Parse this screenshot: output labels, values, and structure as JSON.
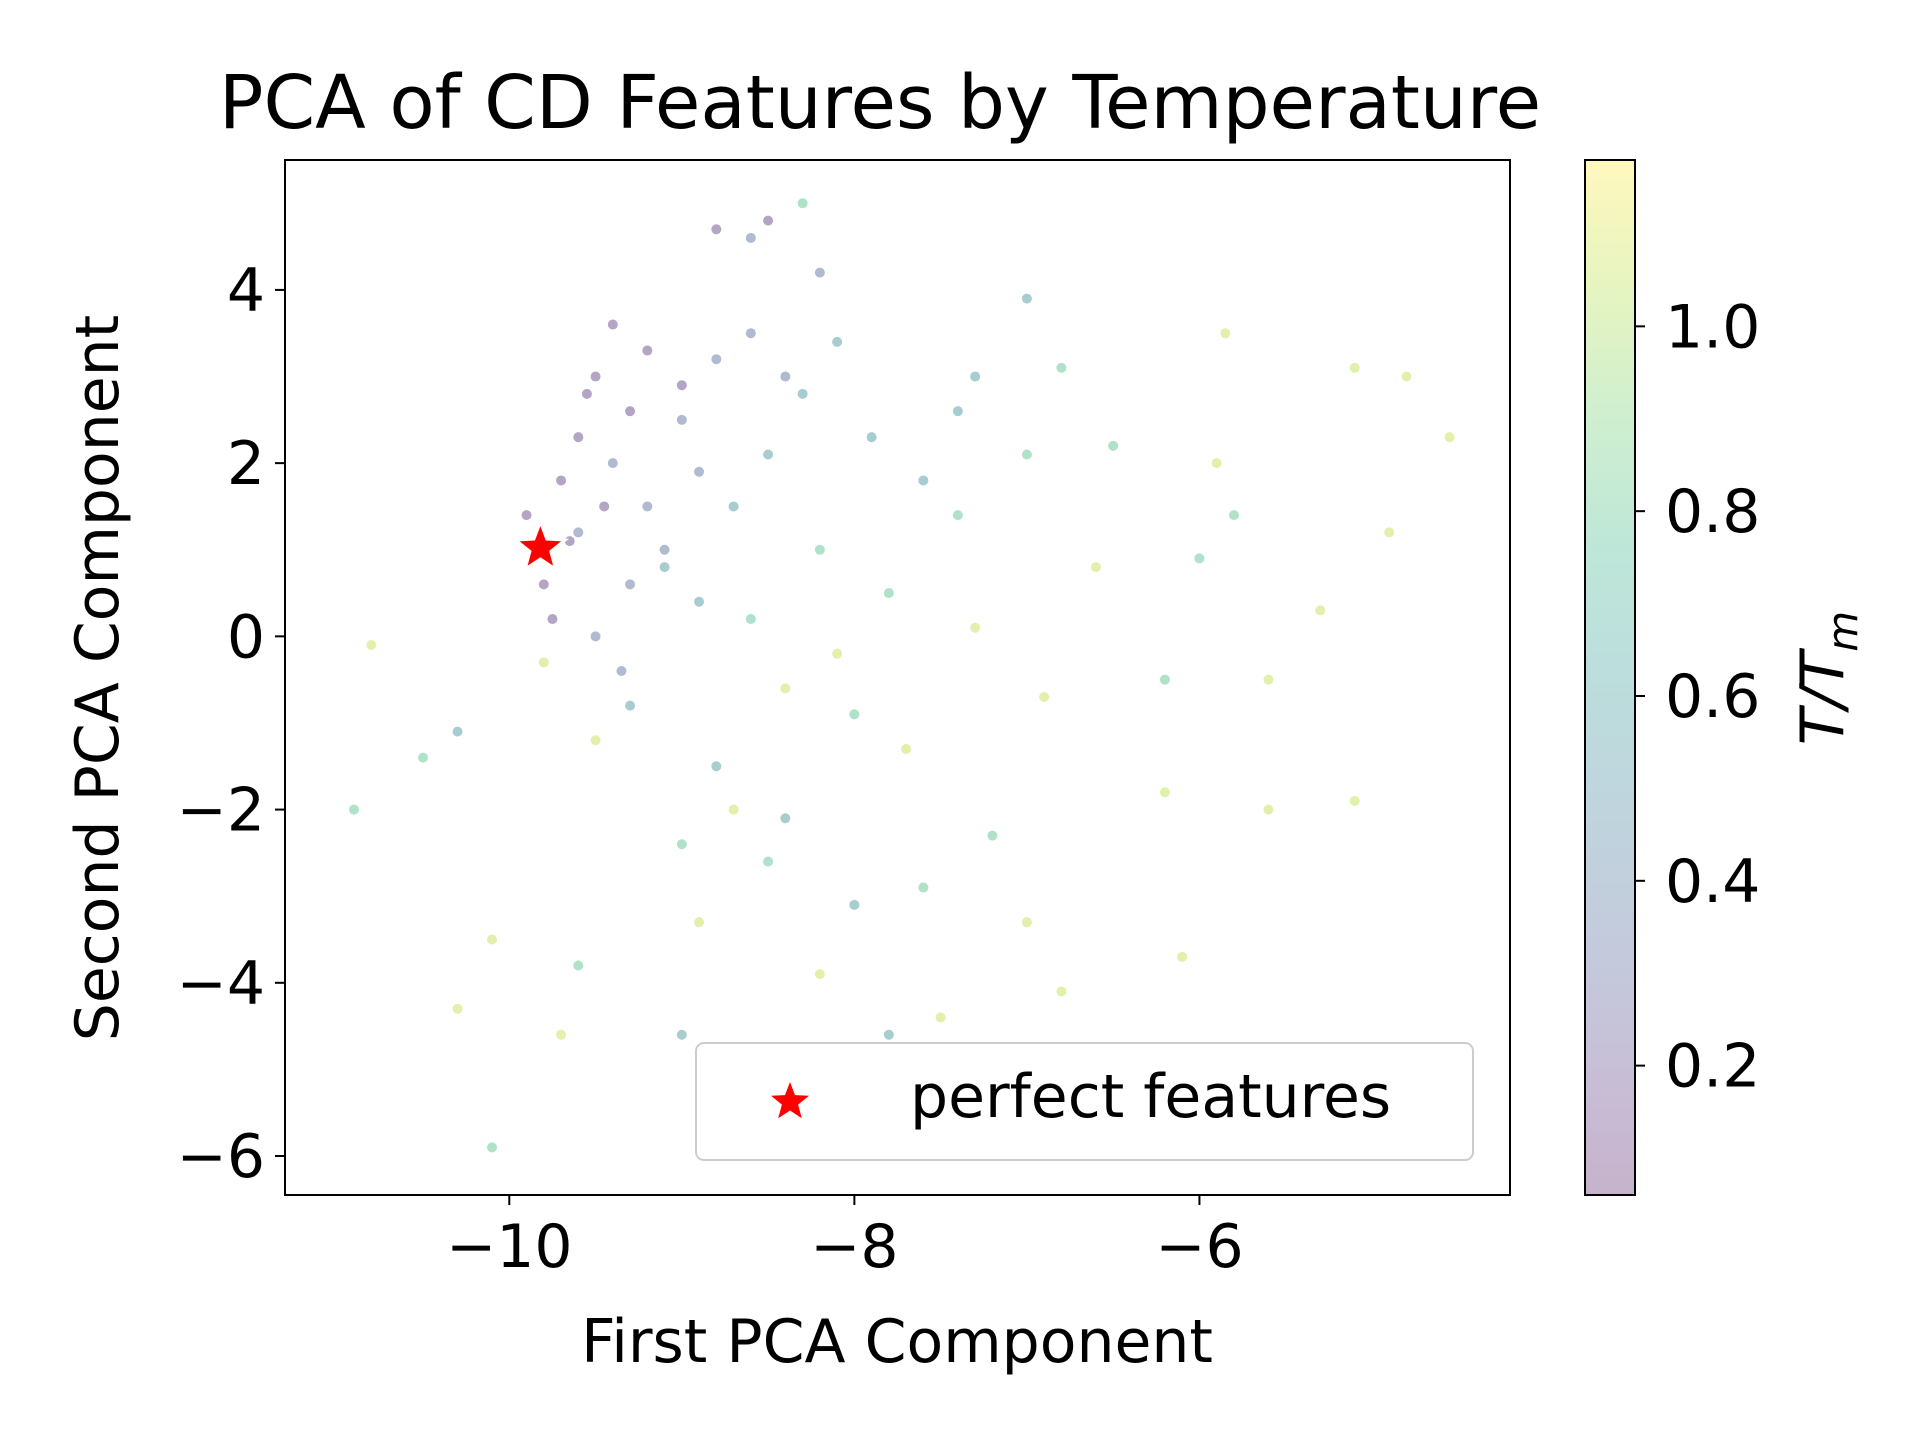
{
  "chart_data": {
    "type": "scatter",
    "title": "PCA of CD Features by Temperature",
    "xlabel": "First PCA Component",
    "ylabel": "Second PCA Component",
    "xlim": [
      -11.3,
      -4.2
    ],
    "ylim": [
      -6.45,
      5.5
    ],
    "xticks": [
      -10,
      -8,
      -6
    ],
    "xtick_labels": [
      "−10",
      "−8",
      "−6"
    ],
    "yticks": [
      4,
      2,
      0,
      -2,
      -4,
      -6
    ],
    "ytick_labels": [
      "4",
      "2",
      "0",
      "−2",
      "−4",
      "−6"
    ],
    "colorbar": {
      "label_base": "T/T",
      "label_sub": "m",
      "range": [
        0.06,
        1.18
      ],
      "ticks": [
        0.2,
        0.4,
        0.6,
        0.8,
        1.0
      ],
      "tick_labels": [
        "0.2",
        "0.4",
        "0.6",
        "0.8",
        "1.0"
      ],
      "colormap": "viridis"
    },
    "legend": {
      "placement": "lower-right",
      "entries": [
        {
          "label": "perfect features",
          "marker": "star",
          "color": "#ff0000"
        }
      ]
    },
    "highlight_point": {
      "name": "perfect features",
      "x": -9.82,
      "y": 1.02,
      "marker": "star",
      "color": "#ff0000"
    },
    "series": [
      {
        "t": 0.15,
        "points": [
          [
            -9.9,
            1.4
          ],
          [
            -9.8,
            0.6
          ],
          [
            -9.7,
            1.8
          ],
          [
            -9.6,
            2.3
          ],
          [
            -9.5,
            3.0
          ],
          [
            -9.4,
            3.6
          ],
          [
            -9.3,
            2.6
          ],
          [
            -9.75,
            0.2
          ],
          [
            -9.65,
            1.1
          ],
          [
            -9.55,
            2.8
          ],
          [
            -8.8,
            4.7
          ],
          [
            -8.5,
            4.8
          ],
          [
            -9.2,
            3.3
          ],
          [
            -9.0,
            2.9
          ],
          [
            -9.85,
            0.9
          ],
          [
            -9.45,
            1.5
          ]
        ]
      },
      {
        "t": 0.35,
        "points": [
          [
            -9.6,
            1.2
          ],
          [
            -9.4,
            2.0
          ],
          [
            -9.2,
            1.5
          ],
          [
            -9.0,
            2.5
          ],
          [
            -8.8,
            3.2
          ],
          [
            -8.6,
            3.5
          ],
          [
            -9.3,
            0.6
          ],
          [
            -9.5,
            0.0
          ],
          [
            -8.6,
            4.6
          ],
          [
            -8.2,
            4.2
          ],
          [
            -9.1,
            1.0
          ],
          [
            -8.9,
            1.9
          ],
          [
            -9.35,
            -0.4
          ],
          [
            -8.4,
            3.0
          ]
        ]
      },
      {
        "t": 0.55,
        "points": [
          [
            -9.1,
            0.8
          ],
          [
            -8.9,
            0.4
          ],
          [
            -8.7,
            1.5
          ],
          [
            -8.5,
            2.1
          ],
          [
            -8.3,
            2.8
          ],
          [
            -8.1,
            3.4
          ],
          [
            -7.9,
            2.3
          ],
          [
            -7.6,
            1.8
          ],
          [
            -7.3,
            3.0
          ],
          [
            -7.0,
            3.9
          ],
          [
            -9.3,
            -0.8
          ],
          [
            -8.8,
            -1.5
          ],
          [
            -8.4,
            -2.1
          ],
          [
            -8.0,
            -3.1
          ],
          [
            -7.8,
            -4.6
          ],
          [
            -9.0,
            -4.6
          ],
          [
            -10.3,
            -1.1
          ],
          [
            -7.4,
            2.6
          ]
        ]
      },
      {
        "t": 0.8,
        "points": [
          [
            -8.6,
            0.2
          ],
          [
            -8.2,
            1.0
          ],
          [
            -7.8,
            0.5
          ],
          [
            -7.4,
            1.4
          ],
          [
            -7.0,
            2.1
          ],
          [
            -6.8,
            3.1
          ],
          [
            -6.5,
            2.2
          ],
          [
            -6.0,
            0.9
          ],
          [
            -8.0,
            -0.9
          ],
          [
            -8.5,
            -2.6
          ],
          [
            -9.0,
            -2.4
          ],
          [
            -9.6,
            -3.8
          ],
          [
            -10.5,
            -1.4
          ],
          [
            -10.9,
            -2.0
          ],
          [
            -7.2,
            -2.3
          ],
          [
            -8.3,
            5.0
          ],
          [
            -5.8,
            1.4
          ],
          [
            -6.2,
            -0.5
          ],
          [
            -7.6,
            -2.9
          ],
          [
            -10.1,
            -5.9
          ]
        ]
      },
      {
        "t": 1.05,
        "points": [
          [
            -8.4,
            -0.6
          ],
          [
            -8.1,
            -0.2
          ],
          [
            -7.7,
            -1.3
          ],
          [
            -7.3,
            0.1
          ],
          [
            -6.9,
            -0.7
          ],
          [
            -6.6,
            0.8
          ],
          [
            -6.2,
            -1.8
          ],
          [
            -5.9,
            2.0
          ],
          [
            -5.6,
            -0.5
          ],
          [
            -5.3,
            0.3
          ],
          [
            -5.1,
            3.1
          ],
          [
            -4.9,
            1.2
          ],
          [
            -4.8,
            3.0
          ],
          [
            -4.55,
            2.3
          ],
          [
            -9.8,
            -0.3
          ],
          [
            -10.1,
            -3.5
          ],
          [
            -10.3,
            -4.3
          ],
          [
            -9.7,
            -4.6
          ],
          [
            -9.5,
            -1.2
          ],
          [
            -8.9,
            -3.3
          ],
          [
            -8.2,
            -3.9
          ],
          [
            -7.5,
            -4.4
          ],
          [
            -6.8,
            -4.1
          ],
          [
            -6.1,
            -3.7
          ],
          [
            -5.1,
            -1.9
          ],
          [
            -5.6,
            -2.0
          ],
          [
            -10.8,
            -0.1
          ],
          [
            -7.0,
            -3.3
          ],
          [
            -5.85,
            3.5
          ],
          [
            -8.7,
            -2.0
          ]
        ]
      }
    ]
  }
}
